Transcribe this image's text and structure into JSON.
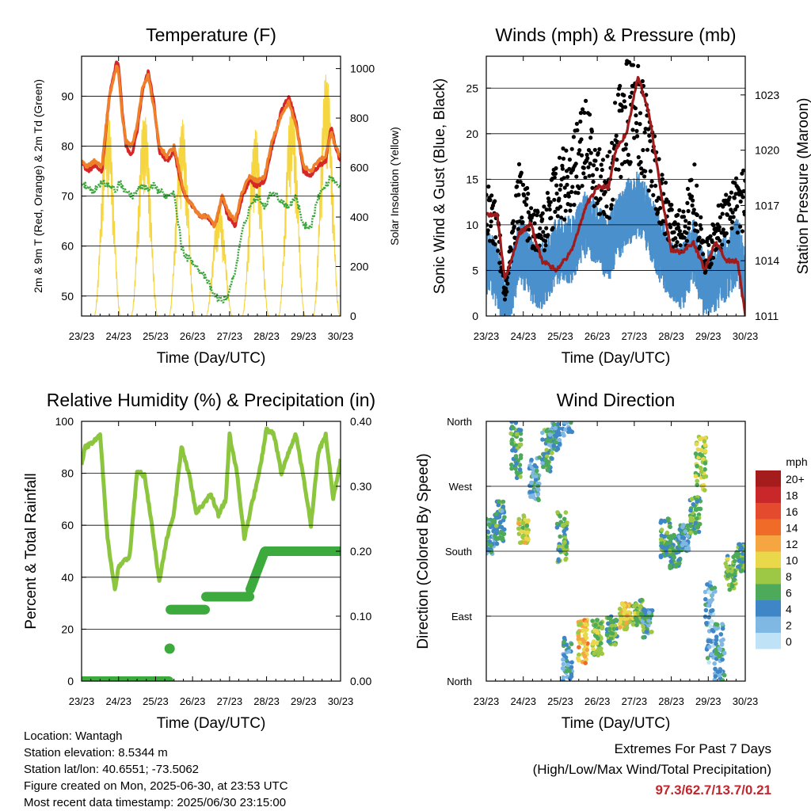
{
  "chart_data": [
    {
      "type": "line",
      "title": "Temperature (F)",
      "xlabel": "Time (Day/UTC)",
      "ylabel": "2m & 9m T (Red, Orange) & 2m Td (Green)",
      "ylabel_right": "Solar Insolation (Yellow)",
      "x_ticks": [
        "23/23",
        "24/23",
        "25/23",
        "26/23",
        "27/23",
        "28/23",
        "29/23",
        "30/23"
      ],
      "y_ticks": [
        50,
        60,
        70,
        80,
        90
      ],
      "y_right_ticks": [
        0,
        200,
        400,
        600,
        800,
        1000
      ],
      "ylim": [
        46,
        98
      ],
      "ylim_right": [
        0,
        1050
      ],
      "grid": true,
      "x": [
        0,
        0.15,
        0.35,
        0.55,
        0.75,
        0.95,
        1.0,
        1.1,
        1.2,
        1.35,
        1.5,
        1.65,
        1.8,
        1.95,
        2.1,
        2.3,
        2.5,
        2.7,
        2.8,
        3.0,
        3.2,
        3.4,
        3.6,
        3.8,
        3.95,
        4.15,
        4.35,
        4.55,
        4.75,
        4.95,
        5.15,
        5.4,
        5.6,
        5.8,
        6.0,
        6.2,
        6.4,
        6.6,
        6.75,
        6.85,
        7.0
      ],
      "series": [
        {
          "color": "#d62728",
          "values": [
            77,
            75,
            76,
            75,
            90,
            97,
            96,
            87,
            80,
            78,
            83,
            91,
            95,
            89,
            79,
            77,
            79,
            72,
            70,
            68,
            66,
            66,
            64,
            70,
            66,
            64,
            70,
            73,
            72,
            73,
            80,
            87,
            90,
            85,
            75,
            74,
            76,
            77,
            84,
            80,
            77
          ]
        },
        {
          "color": "#f07f2a",
          "values": [
            77,
            76,
            77,
            76,
            90,
            96,
            95,
            86,
            81,
            80,
            84,
            92,
            94,
            88,
            80,
            78,
            80,
            73,
            70,
            68,
            66,
            66,
            64,
            70,
            67,
            65,
            71,
            74,
            73,
            74,
            81,
            86,
            89,
            84,
            76,
            75,
            77,
            78,
            83,
            80,
            78
          ]
        },
        {
          "color": "#3ea63e",
          "values": [
            72,
            72,
            71,
            73,
            72,
            71,
            73,
            72,
            71,
            70,
            71,
            72,
            71,
            72,
            71,
            70,
            71,
            60,
            58,
            57,
            55,
            53,
            50,
            49,
            50,
            55,
            63,
            68,
            70,
            68,
            71,
            69,
            68,
            70,
            64,
            64,
            70,
            72,
            74,
            73,
            72
          ]
        }
      ],
      "insolation": {
        "color": "#f5d540",
        "peaks": [
          {
            "day": 0.7,
            "value": 850
          },
          {
            "day": 1.7,
            "value": 830
          },
          {
            "day": 2.72,
            "value": 800
          },
          {
            "day": 3.72,
            "value": 460
          },
          {
            "day": 4.7,
            "value": 760
          },
          {
            "day": 5.68,
            "value": 880
          },
          {
            "day": 6.62,
            "value": 1000
          }
        ]
      }
    },
    {
      "type": "line",
      "title": "Winds (mph) & Pressure (mb)",
      "xlabel": "Time (Day/UTC)",
      "ylabel": "Sonic Wind & Gust (Blue, Black)",
      "ylabel_right": "Station Pressure (Maroon)",
      "x_ticks": [
        "23/23",
        "24/23",
        "25/23",
        "26/23",
        "27/23",
        "28/23",
        "29/23",
        "30/23"
      ],
      "y_ticks": [
        0,
        5,
        10,
        15,
        20,
        25
      ],
      "y_right_ticks": [
        1011,
        1014,
        1017,
        1020,
        1023
      ],
      "ylim": [
        0,
        28.5
      ],
      "ylim_right": [
        1011,
        1025.1
      ],
      "grid": true,
      "x": [
        0,
        0.3,
        0.5,
        0.9,
        1.2,
        1.5,
        1.9,
        2.3,
        2.7,
        3.0,
        3.3,
        3.5,
        3.8,
        4.1,
        4.4,
        4.7,
        5.0,
        5.3,
        5.6,
        5.9,
        6.2,
        6.5,
        6.8,
        7.0
      ],
      "series": [
        {
          "name": "",
          "color": "#000000",
          "values": [
            12,
            10,
            2,
            14,
            10,
            9,
            14,
            15,
            20,
            15,
            14,
            19,
            22,
            23,
            18,
            13,
            10,
            9,
            14,
            6,
            9,
            11,
            12,
            13
          ]
        },
        {
          "name": "",
          "color": "#4a90cc",
          "values": [
            7,
            5,
            1,
            8,
            6,
            5,
            8,
            8,
            11,
            10,
            8,
            10,
            12,
            13,
            11,
            8,
            6,
            5,
            8,
            4,
            5,
            6,
            8,
            5
          ]
        },
        {
          "name": "",
          "color": "#a01c1c",
          "values": [
            1016.5,
            1016.5,
            1013,
            1015.5,
            1016,
            1014,
            1013.5,
            1014.5,
            1017,
            1018,
            1018,
            1020,
            1021,
            1024,
            1022,
            1018,
            1014.5,
            1014.5,
            1015,
            1013.5,
            1015,
            1014,
            1014,
            1011
          ]
        }
      ]
    },
    {
      "type": "line",
      "title": "Relative Humidity (%) & Precipitation (in)",
      "xlabel": "Time (Day/UTC)",
      "ylabel": "Percent & Total Rainfall",
      "x_ticks": [
        "23/23",
        "24/23",
        "25/23",
        "26/23",
        "27/23",
        "28/23",
        "29/23",
        "30/23"
      ],
      "y_ticks": [
        0,
        20,
        40,
        60,
        80,
        100
      ],
      "y_right_ticks": [
        "0.00",
        "0.10",
        "0.20",
        "0.30",
        "0.40"
      ],
      "ylim": [
        0,
        100
      ],
      "ylim_right": [
        0,
        0.4
      ],
      "grid": true,
      "x": [
        0,
        0.1,
        0.3,
        0.5,
        0.7,
        0.9,
        1.0,
        1.3,
        1.5,
        1.7,
        1.9,
        2.1,
        2.3,
        2.5,
        2.7,
        2.9,
        3.1,
        3.3,
        3.5,
        3.7,
        3.9,
        4.0,
        4.2,
        4.4,
        4.6,
        4.8,
        5.0,
        5.2,
        5.4,
        5.6,
        5.8,
        6.0,
        6.2,
        6.4,
        6.6,
        6.8,
        7.0
      ],
      "series": [
        {
          "color": "#8cc63f",
          "values": [
            83,
            90,
            92,
            95,
            55,
            35,
            44,
            48,
            81,
            79,
            60,
            38,
            55,
            65,
            90,
            80,
            65,
            68,
            72,
            64,
            70,
            95,
            80,
            55,
            68,
            80,
            97,
            95,
            80,
            88,
            95,
            78,
            60,
            88,
            95,
            70,
            85
          ]
        }
      ],
      "precip": {
        "color": "#3daa3d",
        "steps": [
          {
            "day": 0.0,
            "value": 0.0
          },
          {
            "day": 2.38,
            "value": 0.05
          },
          {
            "day": 2.4,
            "value": 0.11
          },
          {
            "day": 3.35,
            "value": 0.13
          },
          {
            "day": 4.55,
            "value": 0.14
          },
          {
            "day": 4.8,
            "value": 0.17
          },
          {
            "day": 4.95,
            "value": 0.2
          },
          {
            "day": 7.0,
            "value": 0.2
          }
        ]
      }
    },
    {
      "type": "scatter",
      "title": "Wind Direction",
      "xlabel": "Time (Day/UTC)",
      "ylabel": "Direction (Colored By Speed)",
      "x_ticks": [
        "23/23",
        "24/23",
        "25/23",
        "26/23",
        "27/23",
        "28/23",
        "29/23",
        "30/23"
      ],
      "y_ticks": [
        "North",
        "East",
        "South",
        "West",
        "North"
      ],
      "ylim": [
        0,
        360
      ],
      "grid": true,
      "legend": {
        "title": "mph",
        "position": "right",
        "labels": [
          "20+",
          "18",
          "16",
          "14",
          "12",
          "10",
          "8",
          "6",
          "4",
          "2",
          "0"
        ],
        "colors": [
          "#a51c1c",
          "#c8282a",
          "#e34a2e",
          "#f06a28",
          "#f5a640",
          "#e8d84a",
          "#9cc845",
          "#4caa5a",
          "#3f86c6",
          "#7fb8e2",
          "#bfe2f7"
        ]
      },
      "clusters": [
        {
          "day": 0.1,
          "dir": 200,
          "spread": 25,
          "speed": 4
        },
        {
          "day": 0.35,
          "dir": 220,
          "spread": 30,
          "speed": 5
        },
        {
          "day": 0.8,
          "dir": 320,
          "spread": 40,
          "speed": 6
        },
        {
          "day": 1.0,
          "dir": 210,
          "spread": 20,
          "speed": 9
        },
        {
          "day": 1.3,
          "dir": 280,
          "spread": 30,
          "speed": 4
        },
        {
          "day": 1.65,
          "dir": 320,
          "spread": 30,
          "speed": 5
        },
        {
          "day": 1.85,
          "dir": 340,
          "spread": 20,
          "speed": 4
        },
        {
          "day": 2.05,
          "dir": 200,
          "spread": 35,
          "speed": 6
        },
        {
          "day": 2.2,
          "dir": 20,
          "spread": 40,
          "speed": 4
        },
        {
          "day": 2.6,
          "dir": 55,
          "spread": 30,
          "speed": 11
        },
        {
          "day": 3.0,
          "dir": 60,
          "spread": 25,
          "speed": 8
        },
        {
          "day": 3.4,
          "dir": 70,
          "spread": 20,
          "speed": 6
        },
        {
          "day": 3.75,
          "dir": 90,
          "spread": 18,
          "speed": 10
        },
        {
          "day": 4.1,
          "dir": 95,
          "spread": 18,
          "speed": 7
        },
        {
          "day": 4.35,
          "dir": 80,
          "spread": 20,
          "speed": 5
        },
        {
          "day": 4.85,
          "dir": 200,
          "spread": 30,
          "speed": 6
        },
        {
          "day": 5.1,
          "dir": 180,
          "spread": 25,
          "speed": 5
        },
        {
          "day": 5.35,
          "dir": 200,
          "spread": 20,
          "speed": 4
        },
        {
          "day": 5.65,
          "dir": 230,
          "spread": 25,
          "speed": 6
        },
        {
          "day": 5.8,
          "dir": 300,
          "spread": 40,
          "speed": 8
        },
        {
          "day": 6.05,
          "dir": 80,
          "spread": 60,
          "speed": 3
        },
        {
          "day": 6.3,
          "dir": 40,
          "spread": 40,
          "speed": 4
        },
        {
          "day": 6.6,
          "dir": 150,
          "spread": 25,
          "speed": 7
        },
        {
          "day": 6.9,
          "dir": 170,
          "spread": 20,
          "speed": 6
        }
      ]
    }
  ],
  "info": {
    "location": "Location: Wantagh",
    "elevation": "Station elevation: 8.5344 m",
    "latlon": "Station lat/lon: 40.6551; -73.5062",
    "created": "Figure created on Mon, 2025-06-30, at 23:53 UTC",
    "timestamp": "Most recent data timestamp: 2025/06/30 23:15:00"
  },
  "extremes": {
    "title": "Extremes For Past 7 Days",
    "subtitle": "(High/Low/Max Wind/Total Precipitation)",
    "values": "97.3/62.7/13.7/0.21"
  }
}
